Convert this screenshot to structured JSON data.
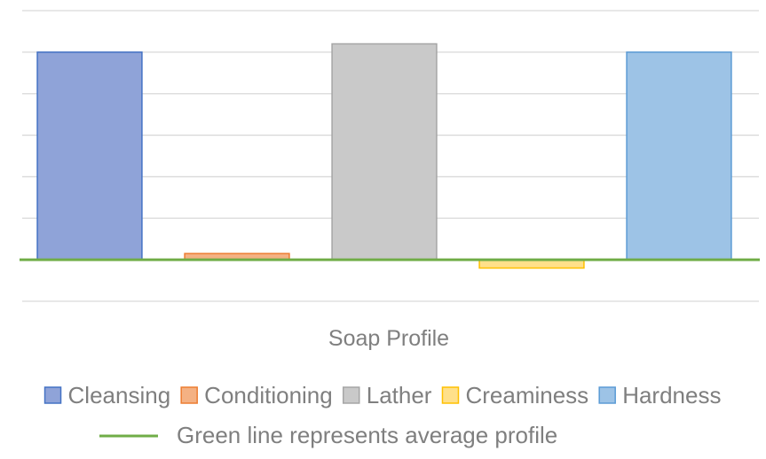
{
  "chart_data": {
    "type": "bar",
    "title": "",
    "xlabel": "Soap Profile",
    "ylabel": "",
    "categories": [
      "Cleansing",
      "Conditioning",
      "Lather",
      "Creaminess",
      "Hardness"
    ],
    "values": [
      5,
      0.15,
      5.2,
      -0.2,
      5
    ],
    "ylim": [
      -1,
      6
    ],
    "grid": true,
    "legend_position": "bottom",
    "series": [
      {
        "name": "Cleansing",
        "value": 5,
        "fill": "#8fa3d8",
        "stroke": "#4472c4"
      },
      {
        "name": "Conditioning",
        "value": 0.15,
        "fill": "#f4b183",
        "stroke": "#ed7d31"
      },
      {
        "name": "Lather",
        "value": 5.2,
        "fill": "#c9c9c9",
        "stroke": "#a5a5a5"
      },
      {
        "name": "Creaminess",
        "value": -0.2,
        "fill": "#ffe08a",
        "stroke": "#ffc000"
      },
      {
        "name": "Hardness",
        "value": 5,
        "fill": "#9dc3e6",
        "stroke": "#5b9bd5"
      }
    ],
    "average_line": {
      "value": 0,
      "color": "#70ad47",
      "label": "Green line represents average profile"
    }
  }
}
